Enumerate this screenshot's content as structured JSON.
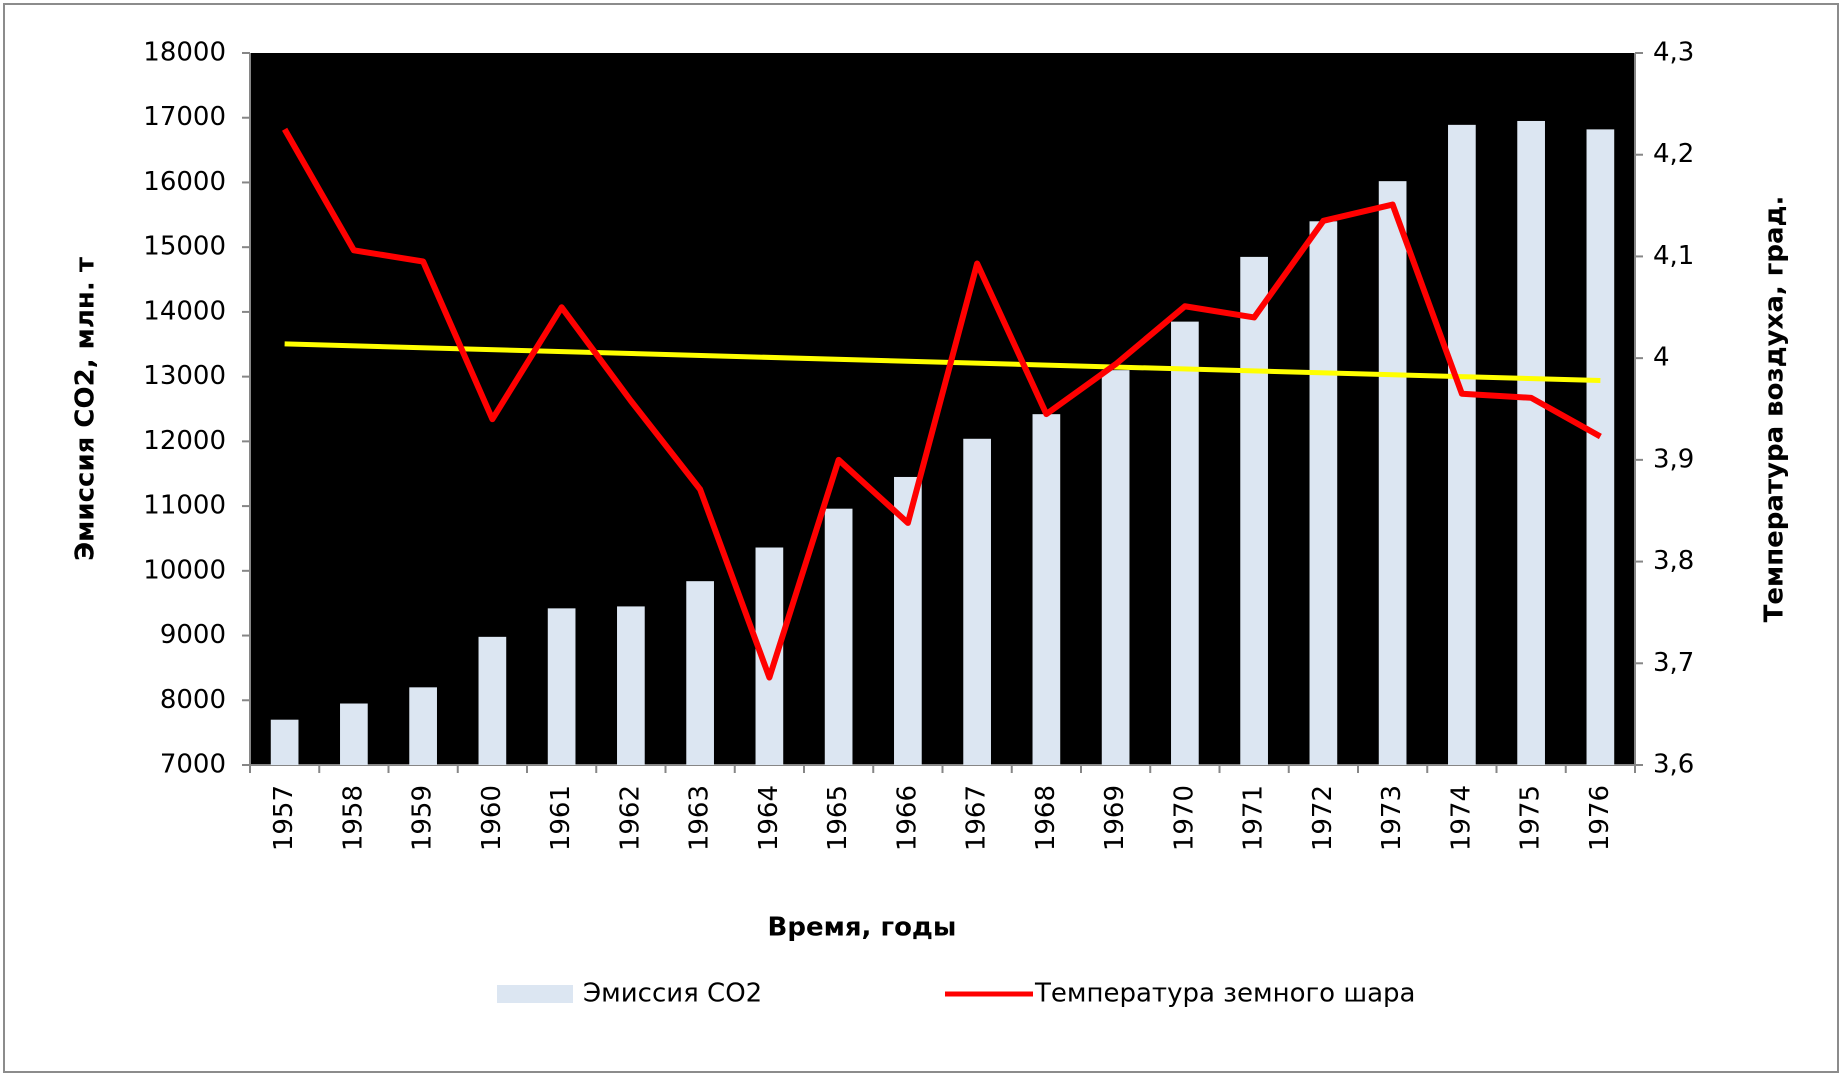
{
  "chart_data": {
    "type": "bar",
    "x_label": "Время, годы",
    "y_label": "Эмиссия СО2, млн. т",
    "y2_label": "Температура воздуха, град.",
    "categories": [
      "1957",
      "1958",
      "1959",
      "1960",
      "1961",
      "1962",
      "1963",
      "1964",
      "1965",
      "1966",
      "1967",
      "1968",
      "1969",
      "1970",
      "1971",
      "1972",
      "1973",
      "1974",
      "1975",
      "1976"
    ],
    "series": [
      {
        "name": "Эмиссия СО2",
        "type": "bar",
        "color": "#dce6f2",
        "values": [
          7700,
          7950,
          8200,
          8980,
          9420,
          9450,
          9840,
          10360,
          10960,
          11450,
          12040,
          12420,
          13100,
          13850,
          14850,
          15400,
          16020,
          16890,
          16950,
          16820
        ]
      },
      {
        "name": "Температура земного шара",
        "type": "line",
        "axis": "y2",
        "color": "#ff0000",
        "values": [
          4.225,
          4.106,
          4.095,
          3.94,
          4.05,
          3.958,
          3.871,
          3.686,
          3.9,
          3.838,
          4.093,
          3.945,
          3.994,
          4.051,
          4.04,
          4.135,
          4.151,
          3.965,
          3.961,
          3.923
        ]
      }
    ],
    "trendline": {
      "color": "#ffff00",
      "values": [
        4.014,
        3.978
      ]
    },
    "ylim": [
      7000,
      18000
    ],
    "yticks": [
      7000,
      8000,
      9000,
      10000,
      11000,
      12000,
      13000,
      14000,
      15000,
      16000,
      17000,
      18000
    ],
    "y2lim": [
      3.6,
      4.3
    ],
    "y2ticks": [
      {
        "value": 3.6,
        "label": "3,6"
      },
      {
        "value": 3.7,
        "label": "3,7"
      },
      {
        "value": 3.8,
        "label": "3,8"
      },
      {
        "value": 3.9,
        "label": "3,9"
      },
      4,
      {
        "value": 4.1,
        "label": "4,1"
      },
      {
        "value": 4.2,
        "label": "4,2"
      },
      {
        "value": 4.3,
        "label": "4,3"
      }
    ],
    "plot_background": "#000000"
  }
}
